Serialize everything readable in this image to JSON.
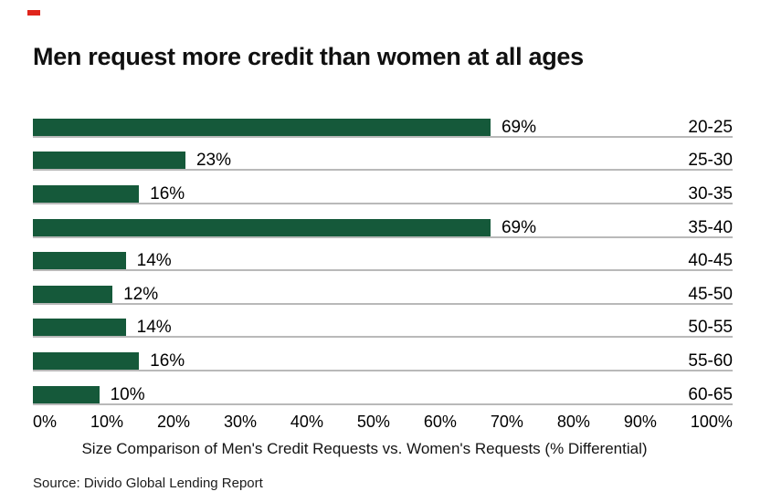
{
  "brand": {
    "red_dash_color": "#e0251c"
  },
  "title": "Men request more credit than women at all ages",
  "chart_data": {
    "type": "bar",
    "orientation": "horizontal",
    "title": "Men request more credit than women at all ages",
    "categories": [
      "20-25",
      "25-30",
      "30-35",
      "35-40",
      "40-45",
      "45-50",
      "50-55",
      "55-60",
      "60-65"
    ],
    "values": [
      69,
      23,
      16,
      69,
      14,
      12,
      14,
      16,
      10
    ],
    "value_labels": [
      "69%",
      "23%",
      "16%",
      "69%",
      "14%",
      "12%",
      "14%",
      "16%",
      "10%"
    ],
    "x_ticks": [
      "0%",
      "10%",
      "20%",
      "30%",
      "40%",
      "50%",
      "60%",
      "70%",
      "80%",
      "90%",
      "100%"
    ],
    "xlim": [
      0,
      100
    ],
    "xlabel": "Size Comparison of Men's Credit Requests vs. Women's Requests (% Differential)",
    "ylabel": "",
    "bar_color": "#15593a",
    "baseline_color": "#b9b9b9",
    "grid": "row baselines only",
    "legend": "none"
  },
  "source": "Source: Divido Global Lending Report"
}
